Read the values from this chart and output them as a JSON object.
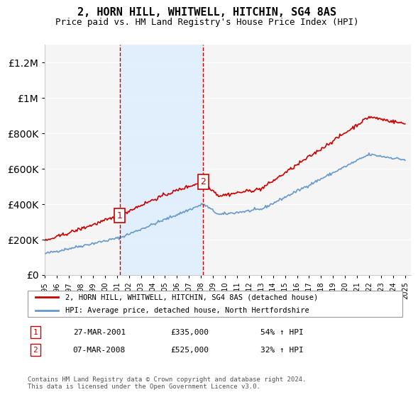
{
  "title": "2, HORN HILL, WHITWELL, HITCHIN, SG4 8AS",
  "subtitle": "Price paid vs. HM Land Registry's House Price Index (HPI)",
  "sale1_date": "27-MAR-2001",
  "sale1_price": 335000,
  "sale1_label": "1",
  "sale1_year": 2001.23,
  "sale2_date": "07-MAR-2008",
  "sale2_price": 525000,
  "sale2_label": "2",
  "sale2_year": 2008.19,
  "legend1": "2, HORN HILL, WHITWELL, HITCHIN, SG4 8AS (detached house)",
  "legend2": "HPI: Average price, detached house, North Hertfordshire",
  "table_row1": [
    "1",
    "27-MAR-2001",
    "£335,000",
    "54% ↑ HPI"
  ],
  "table_row2": [
    "2",
    "07-MAR-2008",
    "£525,000",
    "32% ↑ HPI"
  ],
  "footnote": "Contains HM Land Registry data © Crown copyright and database right 2024.\nThis data is licensed under the Open Government Licence v3.0.",
  "red_color": "#cc0000",
  "blue_color": "#6699cc",
  "shade_color": "#ddeeff",
  "background_color": "#f5f5f5",
  "xmin": 1995,
  "xmax": 2025.5,
  "ymin": 0,
  "ymax": 1300000
}
